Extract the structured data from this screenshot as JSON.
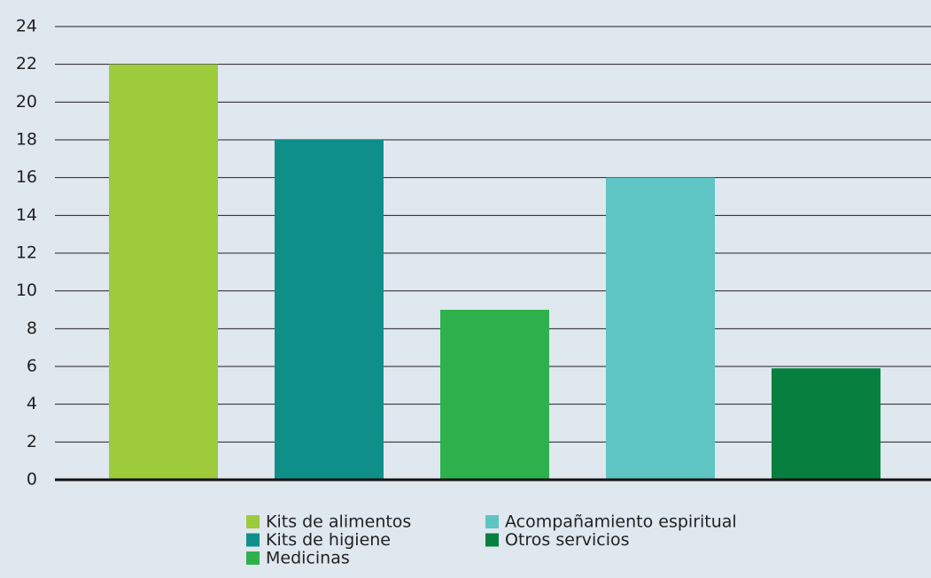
{
  "chart_data": {
    "type": "bar",
    "series": [
      {
        "name": "Kits de alimentos",
        "color": "#9dcb3c",
        "values": [
          22
        ]
      },
      {
        "name": "Kits de higiene",
        "color": "#0f8f8a",
        "values": [
          18
        ]
      },
      {
        "name": "Medicinas",
        "color": "#2eb14c",
        "values": [
          9
        ]
      },
      {
        "name": "Acompañamiento espiritual",
        "color": "#5ec4c4",
        "values": [
          16
        ]
      },
      {
        "name": "Otros servicios",
        "color": "#067f3f",
        "values": [
          5.9
        ]
      }
    ],
    "ylim": [
      0,
      24
    ],
    "yticks": [
      0,
      2,
      4,
      6,
      8,
      10,
      12,
      14,
      16,
      18,
      20,
      22,
      24
    ],
    "grid": true
  }
}
